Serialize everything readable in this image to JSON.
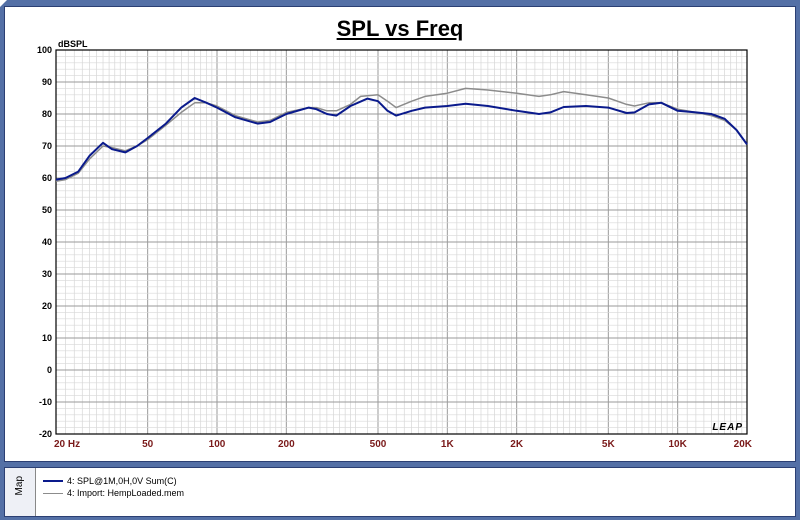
{
  "chart_data": {
    "type": "line",
    "title": "SPL vs Freq",
    "ylabel": "dBSPL",
    "xscale": "log",
    "xlim": [
      20,
      20000
    ],
    "ylim": [
      -20,
      100
    ],
    "grid": true,
    "x_tick_labels": [
      {
        "value": 20,
        "label": "20 Hz"
      },
      {
        "value": 50,
        "label": "50"
      },
      {
        "value": 100,
        "label": "100"
      },
      {
        "value": 200,
        "label": "200"
      },
      {
        "value": 500,
        "label": "500"
      },
      {
        "value": 1000,
        "label": "1K"
      },
      {
        "value": 2000,
        "label": "2K"
      },
      {
        "value": 5000,
        "label": "5K"
      },
      {
        "value": 10000,
        "label": "10K"
      },
      {
        "value": 20000,
        "label": "20K"
      }
    ],
    "y_tick_labels": [
      "100",
      "90",
      "80",
      "70",
      "60",
      "50",
      "40",
      "30",
      "20",
      "10",
      "0",
      "-10",
      "-20"
    ],
    "watermark": "LEAP",
    "series": [
      {
        "name": "4: SPL@1M,0H,0V Sum(C)",
        "color": "#0a1a8c",
        "points": [
          [
            20,
            59.5
          ],
          [
            22,
            60
          ],
          [
            25,
            62
          ],
          [
            28,
            67
          ],
          [
            32,
            71
          ],
          [
            35,
            69
          ],
          [
            40,
            68
          ],
          [
            45,
            70
          ],
          [
            50,
            72.5
          ],
          [
            60,
            77
          ],
          [
            70,
            82
          ],
          [
            80,
            85
          ],
          [
            90,
            83.5
          ],
          [
            100,
            82
          ],
          [
            120,
            79
          ],
          [
            150,
            77
          ],
          [
            170,
            77.5
          ],
          [
            200,
            80
          ],
          [
            250,
            82
          ],
          [
            270,
            81.5
          ],
          [
            300,
            80
          ],
          [
            330,
            79.5
          ],
          [
            380,
            82.5
          ],
          [
            450,
            84.8
          ],
          [
            500,
            84
          ],
          [
            550,
            81
          ],
          [
            600,
            79.5
          ],
          [
            700,
            81
          ],
          [
            800,
            82
          ],
          [
            1000,
            82.5
          ],
          [
            1200,
            83.2
          ],
          [
            1500,
            82.5
          ],
          [
            2000,
            81
          ],
          [
            2500,
            80
          ],
          [
            2800,
            80.5
          ],
          [
            3200,
            82.2
          ],
          [
            4000,
            82.5
          ],
          [
            5000,
            82
          ],
          [
            6000,
            80.3
          ],
          [
            6500,
            80.5
          ],
          [
            7500,
            83
          ],
          [
            8500,
            83.5
          ],
          [
            10000,
            81
          ],
          [
            12000,
            80.5
          ],
          [
            14000,
            80
          ],
          [
            16000,
            78.5
          ],
          [
            18000,
            75
          ],
          [
            20000,
            70.5
          ]
        ]
      },
      {
        "name": "4: Import: HempLoaded.mem",
        "color": "#8c8c8c",
        "points": [
          [
            20,
            59
          ],
          [
            22,
            59.5
          ],
          [
            25,
            61.5
          ],
          [
            28,
            66
          ],
          [
            32,
            70
          ],
          [
            35,
            69.5
          ],
          [
            40,
            68.5
          ],
          [
            45,
            70
          ],
          [
            50,
            72
          ],
          [
            60,
            76.5
          ],
          [
            70,
            80.5
          ],
          [
            80,
            83.5
          ],
          [
            90,
            83.5
          ],
          [
            100,
            82.5
          ],
          [
            120,
            79.5
          ],
          [
            150,
            77.5
          ],
          [
            170,
            78
          ],
          [
            200,
            80.5
          ],
          [
            250,
            82
          ],
          [
            270,
            82
          ],
          [
            300,
            81
          ],
          [
            330,
            81
          ],
          [
            380,
            83
          ],
          [
            420,
            85.5
          ],
          [
            500,
            86
          ],
          [
            550,
            84
          ],
          [
            600,
            82
          ],
          [
            700,
            84
          ],
          [
            800,
            85.5
          ],
          [
            1000,
            86.5
          ],
          [
            1200,
            88
          ],
          [
            1500,
            87.5
          ],
          [
            2000,
            86.5
          ],
          [
            2500,
            85.5
          ],
          [
            2800,
            86
          ],
          [
            3200,
            87
          ],
          [
            4000,
            86
          ],
          [
            5000,
            85
          ],
          [
            6000,
            83
          ],
          [
            6500,
            82.5
          ],
          [
            7500,
            83.5
          ],
          [
            8500,
            83.5
          ],
          [
            10000,
            81.5
          ],
          [
            12000,
            80.5
          ],
          [
            14000,
            79.5
          ],
          [
            16000,
            78
          ],
          [
            18000,
            75
          ],
          [
            20000,
            70.5
          ]
        ]
      }
    ]
  },
  "map_label": "Map"
}
